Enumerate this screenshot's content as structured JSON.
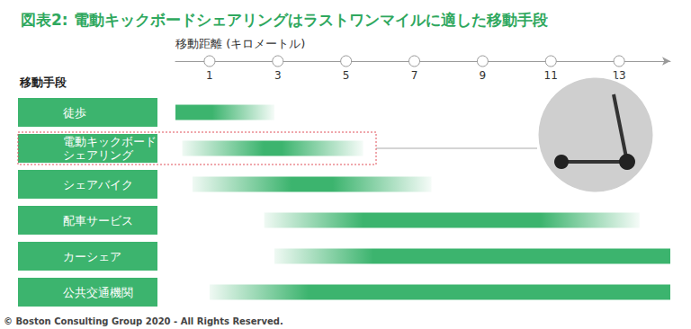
{
  "chart_data": {
    "type": "bar",
    "orientation": "horizontal",
    "title": "図表2: 電動キックボードシェアリングはラストワンマイルに適した移動手段",
    "x_label": "移動距離 (キロメートル)",
    "y_label": "移動手段",
    "source": "© Boston Consulting Group 2020 - All Rights Reserved.",
    "categories": [
      "徒歩",
      "電動キックボードシェアリング",
      "シェアバイク",
      "配車サービス",
      "カーシェア",
      "公共交通機関"
    ],
    "values": [
      [
        0,
        2.9
      ],
      [
        0.2,
        5.5
      ],
      [
        0.5,
        7.5
      ],
      [
        2.6,
        13.6
      ],
      [
        2.9,
        14.5
      ],
      [
        1,
        14.5
      ]
    ],
    "color": "#3cb46e",
    "xlim": [
      0,
      14.5
    ],
    "xticks": [
      1,
      3,
      5,
      7,
      9,
      11,
      13
    ],
    "grid": false
  }
}
